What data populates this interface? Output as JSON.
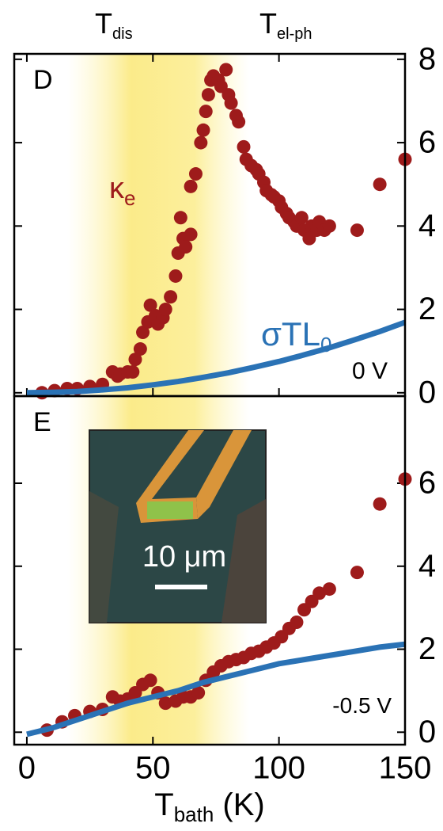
{
  "chart_data": [
    {
      "type": "scatter",
      "panel_label": "D",
      "annotations": [
        {
          "text": "T",
          "sub": "dis"
        },
        {
          "text": "T",
          "sub": "el-ph"
        },
        {
          "text": "0 V"
        }
      ],
      "xlim": [
        -5,
        150
      ],
      "xticks": [
        0,
        50,
        100,
        150
      ],
      "ylim": [
        -0.08,
        8.13
      ],
      "yticks": [
        0,
        2,
        4,
        6,
        8
      ],
      "series": [
        {
          "label": {
            "text": "κ",
            "sub": "e"
          },
          "color": "#9e1b1b",
          "marker": "dot",
          "x": [
            6,
            11,
            16,
            20,
            25,
            30,
            34,
            36,
            37,
            40,
            42,
            43,
            45,
            46,
            48,
            49,
            51,
            52,
            54,
            55,
            57,
            59,
            60,
            62,
            63,
            65,
            61,
            65,
            67,
            69,
            70,
            71,
            72,
            73,
            74,
            76,
            77,
            79,
            80,
            81,
            83,
            84,
            86,
            87,
            89,
            91,
            92,
            94,
            95,
            97,
            98,
            100,
            101,
            103,
            104,
            106,
            107,
            109,
            110,
            112,
            113,
            115,
            116,
            118,
            120,
            131,
            140,
            150
          ],
          "values": [
            0,
            0.05,
            0.1,
            0.1,
            0.15,
            0.2,
            0.5,
            0.4,
            0.45,
            0.5,
            0.5,
            0.8,
            1.05,
            1.45,
            1.7,
            2.1,
            1.85,
            1.65,
            1.8,
            2.0,
            2.3,
            2.8,
            3.35,
            3.7,
            3.5,
            3.8,
            4.2,
            4.95,
            5.25,
            6.0,
            6.3,
            6.75,
            7.15,
            7.5,
            7.6,
            7.5,
            7.35,
            7.75,
            7.15,
            6.95,
            6.65,
            6.5,
            5.9,
            5.6,
            5.45,
            5.35,
            5.25,
            5.05,
            4.85,
            4.75,
            4.7,
            4.6,
            4.45,
            4.3,
            4.2,
            4.1,
            4.0,
            4.2,
            3.9,
            3.7,
            4.0,
            3.9,
            4.1,
            3.9,
            4.0,
            3.9,
            5.0,
            5.6
          ]
        },
        {
          "label": {
            "text": "σTL",
            "sub": "0"
          },
          "color": "#2a72b5",
          "marker": "line",
          "x": [
            0,
            10,
            20,
            30,
            40,
            50,
            60,
            70,
            80,
            90,
            100,
            110,
            120,
            130,
            140,
            150
          ],
          "values": [
            0,
            0.01,
            0.03,
            0.07,
            0.12,
            0.19,
            0.27,
            0.37,
            0.48,
            0.61,
            0.75,
            0.91,
            1.08,
            1.27,
            1.47,
            1.69
          ]
        }
      ]
    },
    {
      "type": "scatter",
      "panel_label": "E",
      "annotations": [
        {
          "text": "-0.5 V"
        },
        {
          "text": "10 μm"
        }
      ],
      "xlabel": {
        "text": "T",
        "sub": "bath",
        "rest": " (K)"
      },
      "xlim": [
        -5,
        150
      ],
      "xticks": [
        0,
        50,
        100,
        150
      ],
      "ylim": [
        -0.3,
        8.1
      ],
      "yticks": [
        0,
        2,
        4,
        6
      ],
      "series": [
        {
          "color": "#9e1b1b",
          "marker": "dot",
          "x": [
            8,
            14,
            19,
            25,
            30,
            34,
            37,
            40,
            43,
            46,
            49,
            52,
            55,
            59,
            62,
            65,
            68,
            71,
            74,
            77,
            80,
            83,
            86,
            89,
            92,
            95,
            98,
            101,
            104,
            107,
            110,
            113,
            116,
            120,
            131,
            140,
            150
          ],
          "values": [
            0.05,
            0.25,
            0.4,
            0.5,
            0.55,
            0.85,
            0.75,
            0.8,
            0.95,
            1.15,
            1.25,
            0.95,
            0.7,
            0.75,
            0.85,
            0.85,
            0.95,
            1.25,
            1.45,
            1.6,
            1.7,
            1.75,
            1.8,
            1.9,
            1.95,
            2.05,
            2.15,
            2.3,
            2.5,
            2.65,
            2.95,
            3.15,
            3.35,
            3.45,
            3.85,
            5.5,
            6.1
          ]
        },
        {
          "color": "#2a72b5",
          "marker": "line",
          "x": [
            0,
            10,
            20,
            30,
            40,
            50,
            60,
            70,
            80,
            90,
            100,
            110,
            120,
            130,
            140,
            150
          ],
          "values": [
            -0.05,
            0.1,
            0.3,
            0.5,
            0.7,
            0.85,
            1.0,
            1.2,
            1.35,
            1.5,
            1.65,
            1.75,
            1.85,
            1.95,
            2.05,
            2.12
          ]
        }
      ]
    }
  ]
}
